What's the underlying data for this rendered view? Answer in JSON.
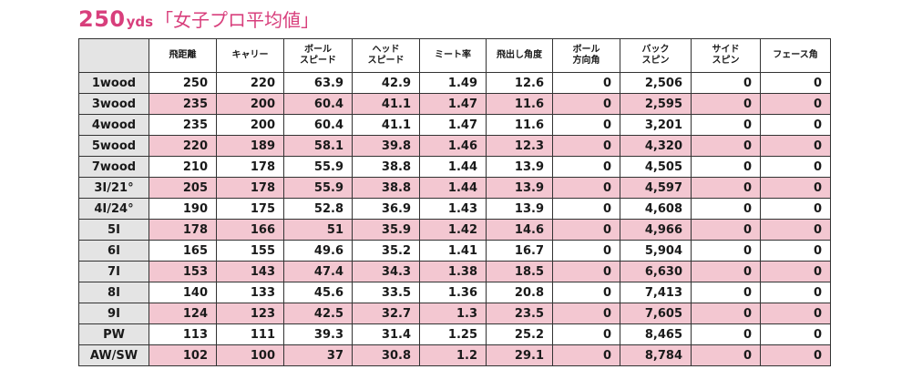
{
  "title": {
    "number": "250",
    "unit": "yds",
    "subtitle": "「女子プロ平均値」"
  },
  "colors": {
    "accent": "#d83f7c",
    "row_highlight": "#f3c7d1",
    "label_column": "#e4e4e4"
  },
  "table": {
    "headers": [
      [
        "飛距離"
      ],
      [
        "キャリー"
      ],
      [
        "ボール",
        "スピード"
      ],
      [
        "ヘッド",
        "スピード"
      ],
      [
        "ミート率"
      ],
      [
        "飛出し角度"
      ],
      [
        "ボール",
        "方向角"
      ],
      [
        "バック",
        "スピン"
      ],
      [
        "サイド",
        "スピン"
      ],
      [
        "フェース角"
      ]
    ],
    "rows": [
      {
        "club": "1wood",
        "highlight": false,
        "values": [
          "250",
          "220",
          "63.9",
          "42.9",
          "1.49",
          "12.6",
          "0",
          "2,506",
          "0",
          "0"
        ]
      },
      {
        "club": "3wood",
        "highlight": true,
        "values": [
          "235",
          "200",
          "60.4",
          "41.1",
          "1.47",
          "11.6",
          "0",
          "2,595",
          "0",
          "0"
        ]
      },
      {
        "club": "4wood",
        "highlight": false,
        "values": [
          "235",
          "200",
          "60.4",
          "41.1",
          "1.47",
          "11.6",
          "0",
          "3,201",
          "0",
          "0"
        ]
      },
      {
        "club": "5wood",
        "highlight": true,
        "values": [
          "220",
          "189",
          "58.1",
          "39.8",
          "1.46",
          "12.3",
          "0",
          "4,320",
          "0",
          "0"
        ]
      },
      {
        "club": "7wood",
        "highlight": false,
        "values": [
          "210",
          "178",
          "55.9",
          "38.8",
          "1.44",
          "13.9",
          "0",
          "4,505",
          "0",
          "0"
        ]
      },
      {
        "club": "3I/21°",
        "highlight": true,
        "values": [
          "205",
          "178",
          "55.9",
          "38.8",
          "1.44",
          "13.9",
          "0",
          "4,597",
          "0",
          "0"
        ]
      },
      {
        "club": "4I/24°",
        "highlight": false,
        "values": [
          "190",
          "175",
          "52.8",
          "36.9",
          "1.43",
          "13.9",
          "0",
          "4,608",
          "0",
          "0"
        ]
      },
      {
        "club": "5I",
        "highlight": true,
        "values": [
          "178",
          "166",
          "51",
          "35.9",
          "1.42",
          "14.6",
          "0",
          "4,966",
          "0",
          "0"
        ]
      },
      {
        "club": "6I",
        "highlight": false,
        "values": [
          "165",
          "155",
          "49.6",
          "35.2",
          "1.41",
          "16.7",
          "0",
          "5,904",
          "0",
          "0"
        ]
      },
      {
        "club": "7I",
        "highlight": true,
        "values": [
          "153",
          "143",
          "47.4",
          "34.3",
          "1.38",
          "18.5",
          "0",
          "6,630",
          "0",
          "0"
        ]
      },
      {
        "club": "8I",
        "highlight": false,
        "values": [
          "140",
          "133",
          "45.6",
          "33.5",
          "1.36",
          "20.8",
          "0",
          "7,413",
          "0",
          "0"
        ]
      },
      {
        "club": "9I",
        "highlight": true,
        "values": [
          "124",
          "123",
          "42.5",
          "32.7",
          "1.3",
          "23.5",
          "0",
          "7,605",
          "0",
          "0"
        ]
      },
      {
        "club": "PW",
        "highlight": false,
        "values": [
          "113",
          "111",
          "39.3",
          "31.4",
          "1.25",
          "25.2",
          "0",
          "8,465",
          "0",
          "0"
        ]
      },
      {
        "club": "AW/SW",
        "highlight": true,
        "values": [
          "102",
          "100",
          "37",
          "30.8",
          "1.2",
          "29.1",
          "0",
          "8,784",
          "0",
          "0"
        ]
      }
    ]
  }
}
